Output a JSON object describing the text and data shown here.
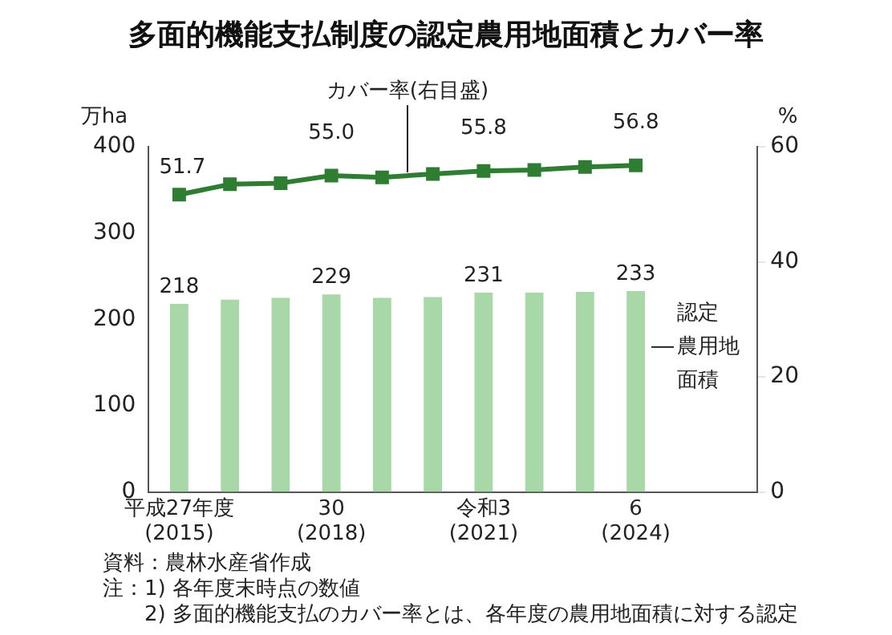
{
  "chart_data": {
    "type": "bar",
    "title": "多面的機能支払制度の認定農用地面積とカバー率",
    "ylabel": "万ha",
    "y2label": "%",
    "categories": [
      "平成27年度\n(2015)",
      null,
      null,
      "30\n(2018)",
      null,
      null,
      "令和3\n(2021)",
      null,
      null,
      "6\n(2024)"
    ],
    "series": [
      {
        "name": "認定農用地面積",
        "color": "#a8d8a8",
        "values": [
          218,
          223,
          225,
          229,
          225,
          226,
          231,
          231,
          232,
          233
        ],
        "value_labels": [
          "218",
          null,
          null,
          "229",
          null,
          null,
          "231",
          null,
          null,
          "233"
        ]
      },
      {
        "type": "line",
        "name": "カバー率(右目盛)",
        "color": "#2e7d32",
        "axis": "y2",
        "marker": "square",
        "values": [
          51.7,
          53.5,
          53.7,
          55.0,
          54.7,
          55.3,
          55.8,
          56.0,
          56.5,
          56.8
        ],
        "value_labels": [
          "51.7",
          null,
          null,
          "55.0",
          null,
          null,
          "55.8",
          null,
          null,
          "56.8"
        ]
      }
    ],
    "ylim": [
      0,
      400
    ],
    "yticks": [
      0,
      100,
      200,
      300,
      400
    ],
    "y2lim": [
      0,
      60
    ],
    "y2ticks": [
      0,
      20,
      40,
      60
    ],
    "grid": false,
    "legend": false,
    "annotations": [
      "資料：農林水産省作成",
      "注：1) 各年度末時点の数値",
      "　　2) 多面的機能支払のカバー率とは、各年度の農用地面積に対する認定"
    ]
  }
}
